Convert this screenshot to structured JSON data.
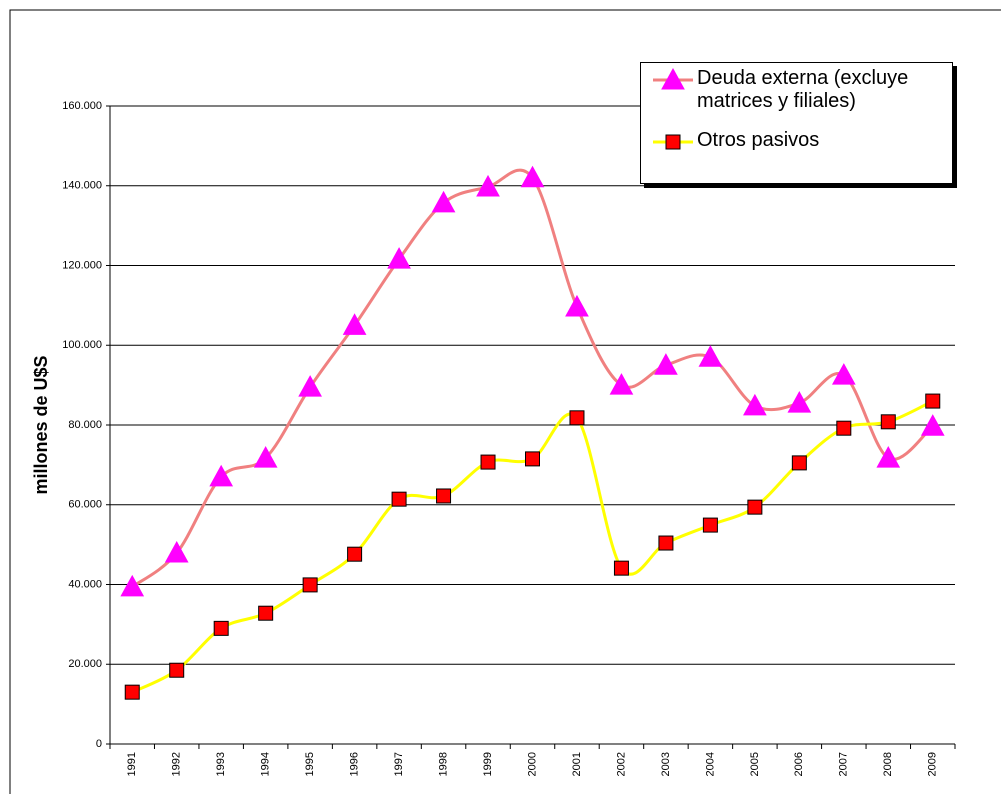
{
  "chart_data": {
    "type": "line",
    "y_label": "millones de U$S",
    "categories": [
      "1991",
      "1992",
      "1993",
      "1994",
      "1995",
      "1996",
      "1997",
      "1998",
      "1999",
      "2000",
      "2001",
      "2002",
      "2003",
      "2004",
      "2005",
      "2006",
      "2007",
      "2008",
      "2009"
    ],
    "series": [
      {
        "name": "Deuda externa (excluye matrices y filiales)",
        "color": "#f08080",
        "marker_color": "#ff00ff",
        "marker": "triangle",
        "values": [
          39400,
          47900,
          67000,
          71700,
          89500,
          105000,
          121600,
          135700,
          139700,
          142000,
          109600,
          90000,
          95000,
          97000,
          84800,
          85500,
          92500,
          71700,
          79700
        ]
      },
      {
        "name": "Otros pasivos",
        "color": "#ffff00",
        "marker_color": "#ff0000",
        "marker": "square",
        "values": [
          13000,
          18500,
          29000,
          32800,
          39900,
          47600,
          61400,
          62200,
          70700,
          71500,
          81800,
          44100,
          50400,
          54900,
          59400,
          70500,
          79200,
          80800,
          86000
        ]
      }
    ],
    "ylim": [
      0,
      160000
    ],
    "yticks": [
      0,
      {
        "value": 20000,
        "label": "20.000"
      },
      {
        "value": 40000,
        "label": "40.000"
      },
      {
        "value": 60000,
        "label": "60.000"
      },
      {
        "value": 80000,
        "label": "80.000"
      },
      {
        "value": 100000,
        "label": "100.000"
      },
      {
        "value": 120000,
        "label": "120.000"
      },
      {
        "value": 140000,
        "label": "140.000"
      },
      {
        "value": 160000,
        "label": "160.000"
      }
    ],
    "grid": true,
    "smooth": true,
    "legend": "top-right"
  }
}
